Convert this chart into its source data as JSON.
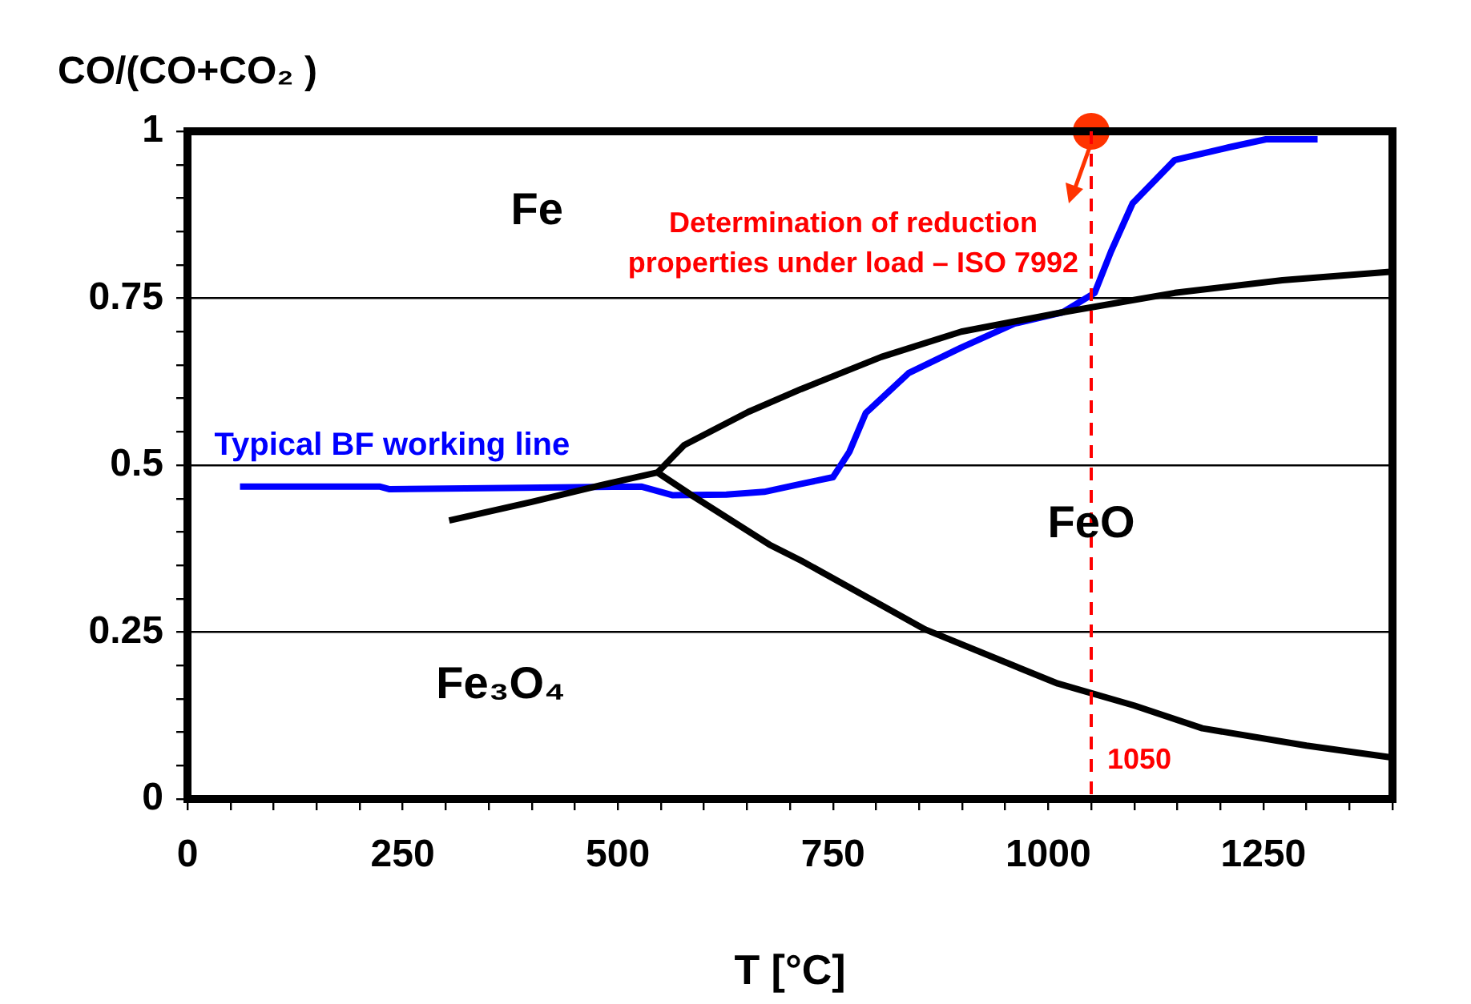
{
  "chart_data": {
    "type": "line",
    "xlabel": "T [°C]",
    "ylabel": "CO/(CO+CO₂ )",
    "xlim": [
      0,
      1400
    ],
    "xticks": [
      0,
      {
        "value": 50,
        "label": null
      },
      {
        "value": 100,
        "label": null
      },
      {
        "value": 150,
        "label": null
      },
      {
        "value": 200,
        "label": null
      },
      250,
      {
        "value": 300,
        "label": null
      },
      {
        "value": 350,
        "label": null
      },
      {
        "value": 400,
        "label": null
      },
      {
        "value": 450,
        "label": null
      },
      500,
      {
        "value": 550,
        "label": null
      },
      {
        "value": 600,
        "label": null
      },
      {
        "value": 650,
        "label": null
      },
      {
        "value": 700,
        "label": null
      },
      750,
      {
        "value": 800,
        "label": null
      },
      {
        "value": 850,
        "label": null
      },
      {
        "value": 900,
        "label": null
      },
      {
        "value": 950,
        "label": null
      },
      1000,
      {
        "value": 1050,
        "label": null
      },
      {
        "value": 1100,
        "label": null
      },
      {
        "value": 1150,
        "label": null
      },
      {
        "value": 1200,
        "label": null
      },
      1250,
      {
        "value": 1300,
        "label": null
      },
      {
        "value": 1350,
        "label": null
      },
      {
        "value": 1400,
        "label": null
      }
    ],
    "ylim": [
      0,
      1
    ],
    "yticks": [
      0,
      {
        "value": 0.05,
        "label": null
      },
      {
        "value": 0.1,
        "label": null
      },
      {
        "value": 0.15,
        "label": null
      },
      {
        "value": 0.2,
        "label": null
      },
      0.25,
      {
        "value": 0.3,
        "label": null
      },
      {
        "value": 0.35,
        "label": null
      },
      {
        "value": 0.4,
        "label": null
      },
      {
        "value": 0.45,
        "label": null
      },
      0.5,
      {
        "value": 0.55,
        "label": null
      },
      {
        "value": 0.6,
        "label": null
      },
      {
        "value": 0.65,
        "label": null
      },
      {
        "value": 0.7,
        "label": null
      },
      0.75,
      {
        "value": 0.8,
        "label": null
      },
      {
        "value": 0.85,
        "label": null
      },
      {
        "value": 0.9,
        "label": null
      },
      {
        "value": 0.95,
        "label": null
      },
      1
    ],
    "grid": "y",
    "legend": false,
    "marker": "none",
    "series": [
      {
        "color": "#000000",
        "x": [
          304,
          400,
          480,
          546,
          577,
          652,
          713,
          806,
          899,
          1017,
          1147,
          1272,
          1400
        ],
        "values": [
          0.417,
          0.445,
          0.47,
          0.489,
          0.53,
          0.58,
          0.614,
          0.662,
          0.7,
          0.729,
          0.758,
          0.777,
          0.79
        ]
      },
      {
        "color": "#000000",
        "x": [
          546,
          588,
          676,
          713,
          857,
          950,
          1011,
          1100,
          1179,
          1300,
          1400
        ],
        "values": [
          0.489,
          0.453,
          0.381,
          0.357,
          0.254,
          0.205,
          0.173,
          0.14,
          0.106,
          0.08,
          0.062
        ]
      },
      {
        "name": "Typical BF working line",
        "color": "#0000ff",
        "x": [
          61,
          223,
          235,
          391,
          527,
          564,
          626,
          670,
          713,
          750,
          769,
          788,
          838,
          899,
          961,
          1017,
          1054,
          1073,
          1098,
          1147,
          1210,
          1253,
          1313
        ],
        "values": [
          0.468,
          0.468,
          0.464,
          0.466,
          0.468,
          0.455,
          0.456,
          0.46,
          0.472,
          0.482,
          0.52,
          0.578,
          0.638,
          0.676,
          0.712,
          0.729,
          0.758,
          0.82,
          0.892,
          0.957,
          0.976,
          0.988,
          0.988
        ]
      },
      {
        "type": "scatter",
        "marker": "circle",
        "color": "#ff3300",
        "x": [
          1050
        ],
        "values": [
          1
        ]
      }
    ],
    "ref_lines": [
      {
        "axis": "x",
        "value": 1050,
        "label": "1050",
        "color": "#ff0000",
        "line_style": "dashed"
      }
    ],
    "annotations": [
      "Fe",
      "Fe₃O₄",
      "FeO",
      "Determination of reduction properties under load – ISO 7992"
    ]
  }
}
